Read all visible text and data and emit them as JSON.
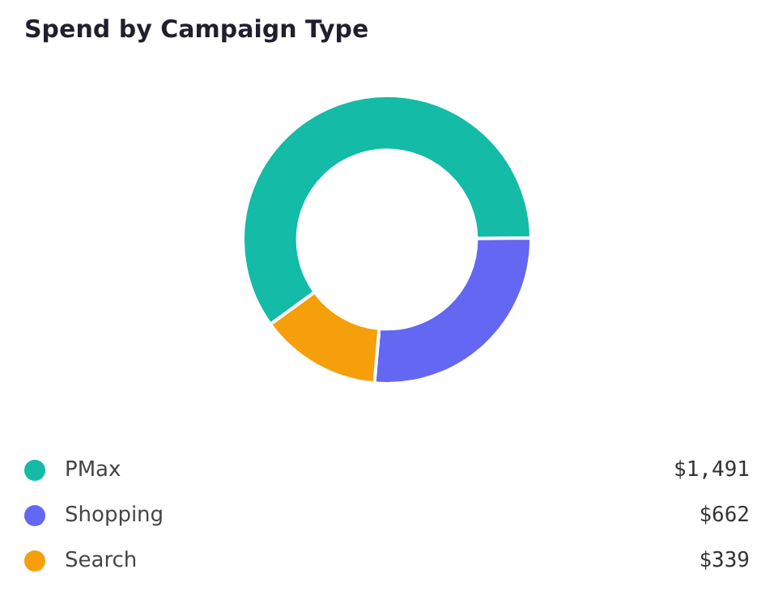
{
  "chart_data": {
    "type": "donut",
    "title": "Spend by Campaign Type",
    "categories": [
      "PMax",
      "Shopping",
      "Search"
    ],
    "values": [
      1491,
      662,
      339
    ],
    "value_labels": [
      "$1,491",
      "$662",
      "$339"
    ],
    "colors": [
      "#14bba6",
      "#6467f2",
      "#f59f0b"
    ],
    "legend": "bottom"
  }
}
